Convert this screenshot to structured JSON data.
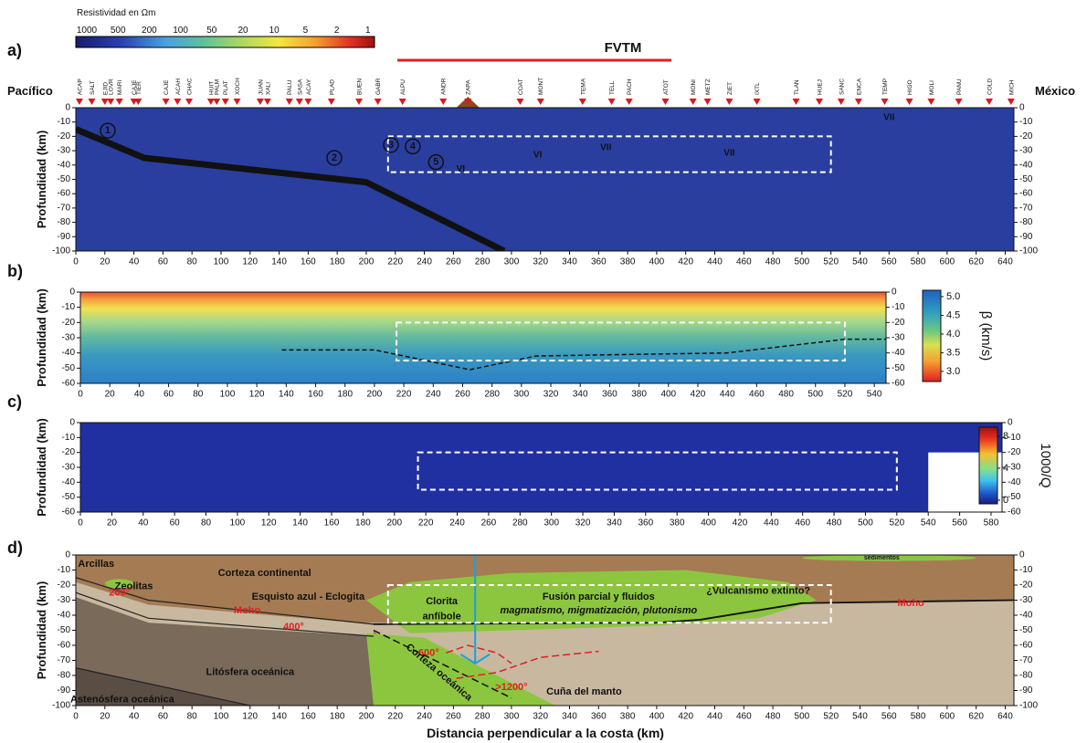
{
  "chart_data": [
    {
      "type": "heatmap",
      "panel": "a)",
      "ylabel": "Profundidad (km)",
      "left_label": "Pacífico",
      "right_label": "México",
      "region_label": "FVTM",
      "colorbar_title": "Resistividad en Ωm",
      "colorbar_ticks": [
        1000,
        500,
        200,
        100,
        50,
        20,
        10,
        5,
        2,
        1
      ],
      "stations": {
        "names": [
          "ACAP",
          "SALT",
          "EJID",
          "LOVR",
          "MARI",
          "CAJE",
          "TIER",
          "CAJE",
          "ACAH",
          "CHAC",
          "HUIT",
          "PALM",
          "PLAT",
          "XOCH",
          "JUAN",
          "XALI",
          "PALU",
          "SASA",
          "ACAY",
          "PLAD",
          "BUEN",
          "GABR",
          "ALPU",
          "ANDR",
          "ZAPA",
          "COAT",
          "MONT",
          "TEMA",
          "TELL",
          "PACH",
          "ATOT",
          "MONI",
          "METZ",
          "ZIET",
          "IXTL",
          "TLAN",
          "HUEJ",
          "SANC",
          "ENCA",
          "TEMP",
          "HIGO",
          "MOLI",
          "PANU",
          "COLD",
          "MICH"
        ],
        "x": [
          2.5,
          11,
          20,
          24,
          30,
          40,
          43,
          62,
          70,
          78,
          93,
          97,
          103,
          111,
          127,
          132,
          147,
          154,
          160,
          176,
          195,
          208,
          225,
          253,
          270,
          306,
          320,
          349,
          369,
          381,
          406,
          425,
          435,
          450,
          469,
          496,
          512,
          527,
          539,
          557,
          574,
          589,
          608,
          629,
          644
        ]
      },
      "annotations": [
        "1",
        "2",
        "3",
        "4",
        "5",
        "VI",
        "VI",
        "VII",
        "VII",
        "VII"
      ],
      "xlim": [
        0,
        646
      ],
      "xticks": [
        0,
        20,
        40,
        60,
        80,
        100,
        120,
        140,
        160,
        180,
        200,
        220,
        240,
        260,
        280,
        300,
        320,
        340,
        360,
        380,
        400,
        420,
        440,
        460,
        480,
        500,
        520,
        540,
        560,
        580,
        600,
        620,
        640
      ],
      "ylim": [
        -100,
        0
      ],
      "yticks": [
        0,
        -10,
        -20,
        -30,
        -40,
        -50,
        -60,
        -70,
        -80,
        -90,
        -100
      ],
      "y2lim": [
        -100,
        0
      ],
      "y2ticks": [
        0,
        -10,
        -20,
        -30,
        -40,
        -50,
        -60,
        -70,
        -80,
        -90,
        -100
      ]
    },
    {
      "type": "heatmap",
      "panel": "b)",
      "ylabel": "Profundidad (km)",
      "colorbar_title": "β (km/s)",
      "colorbar_lim": [
        2.73,
        5.17
      ],
      "colorbar_ticks": [
        {
          "value": 5,
          "label": "5.0"
        },
        4.5,
        {
          "value": 4,
          "label": "4.0"
        },
        3.5,
        {
          "value": 3,
          "label": "3.0"
        }
      ],
      "xlim": [
        0,
        548
      ],
      "xticks": [
        0,
        20,
        40,
        60,
        80,
        100,
        120,
        140,
        160,
        180,
        200,
        220,
        240,
        260,
        280,
        300,
        320,
        340,
        360,
        380,
        400,
        420,
        440,
        460,
        480,
        500,
        520,
        540
      ],
      "ylim": [
        -60,
        0
      ],
      "yticks": [
        0,
        -10,
        -20,
        -30,
        -40,
        -50,
        -60
      ],
      "y2lim": [
        -60,
        0
      ],
      "y2ticks": [
        0,
        -10,
        -20,
        -30,
        -40,
        -50,
        -60
      ]
    },
    {
      "type": "heatmap",
      "panel": "c)",
      "ylabel": "Profundidad (km)",
      "colorbar_title": "1000/Q",
      "colorbar_lim": [
        -0.46,
        9.14
      ],
      "colorbar_ticks": [
        8,
        4,
        0
      ],
      "xlim": [
        0,
        587
      ],
      "xticks": [
        0,
        20,
        40,
        60,
        80,
        100,
        120,
        140,
        160,
        180,
        200,
        220,
        240,
        260,
        280,
        300,
        320,
        340,
        360,
        380,
        400,
        420,
        440,
        460,
        480,
        500,
        520,
        540,
        560,
        580
      ],
      "ylim": [
        -60,
        0
      ],
      "yticks": [
        0,
        -10,
        -20,
        -30,
        -40,
        -50,
        -60
      ],
      "y2lim": [
        -60,
        0
      ],
      "y2ticks": [
        0,
        -10,
        -20,
        -30,
        -40,
        -50,
        -60
      ]
    },
    {
      "type": "section",
      "panel": "d)",
      "ylabel": "Profundidad (km)",
      "xlabel": "Distancia perpendicular a la costa (km)",
      "annotations": [
        "Arcillas",
        "Zeolitas",
        "200°",
        "Corteza continental",
        "Esquisto azul - Eclogita",
        "Moho",
        "400°",
        "600°",
        "Litósfera oceánica",
        "Corteza oceánica",
        "Astenósfera oceánica",
        "Clorita",
        "anfíbole",
        "Fusión parcial y fluidos",
        "magmatismo, migmatización, plutonismo",
        "¿Vulcanismo extinto?",
        "Moho",
        ">1200°",
        "Cuña del manto",
        "sedimentos"
      ],
      "xlim": [
        0,
        646
      ],
      "xticks": [
        0,
        20,
        40,
        60,
        80,
        100,
        120,
        140,
        160,
        180,
        200,
        220,
        240,
        260,
        280,
        300,
        320,
        340,
        360,
        380,
        400,
        420,
        440,
        460,
        480,
        500,
        520,
        540,
        560,
        580,
        600,
        620,
        640
      ],
      "ylim": [
        -100,
        0
      ],
      "yticks": [
        0,
        -10,
        -20,
        -30,
        -40,
        -50,
        -60,
        -70,
        -80,
        -90,
        -100
      ],
      "y2lim": [
        -100,
        0
      ],
      "y2ticks": [
        0,
        -10,
        -20,
        -30,
        -40,
        -50,
        -60,
        -70,
        -80,
        -90,
        -100
      ]
    }
  ]
}
